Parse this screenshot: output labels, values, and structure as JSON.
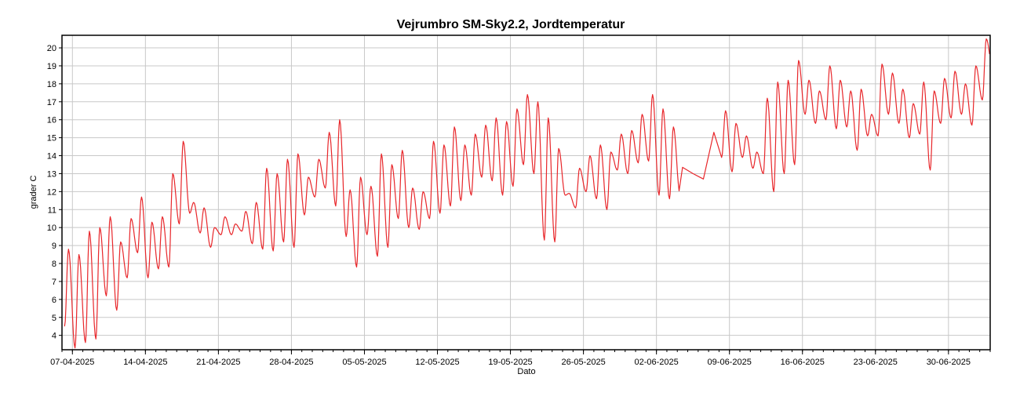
{
  "chart_data": {
    "type": "line",
    "title": "Vejrumbro SM-Sky2.2, Jordtemperatur",
    "xlabel": "Dato",
    "ylabel": "grader C",
    "ylim": [
      3.2,
      20.7
    ],
    "xlim": [
      "2025-04-06",
      "2025-07-04"
    ],
    "grid": true,
    "legend": "none",
    "yticks": [
      4,
      5,
      6,
      7,
      8,
      9,
      10,
      11,
      12,
      13,
      14,
      15,
      16,
      17,
      18,
      19,
      20
    ],
    "xticks": [
      "07-04-2025",
      "14-04-2025",
      "21-04-2025",
      "28-04-2025",
      "05-05-2025",
      "12-05-2025",
      "19-05-2025",
      "26-05-2025",
      "02-06-2025",
      "09-06-2025",
      "16-06-2025",
      "23-06-2025",
      "30-06-2025"
    ],
    "series": [
      {
        "color": "#e8262a",
        "daily_extremes": {
          "dates": [
            "2025-04-06",
            "2025-04-07",
            "2025-04-08",
            "2025-04-09",
            "2025-04-10",
            "2025-04-11",
            "2025-04-12",
            "2025-04-13",
            "2025-04-14",
            "2025-04-15",
            "2025-04-16",
            "2025-04-17",
            "2025-04-18",
            "2025-04-19",
            "2025-04-20",
            "2025-04-21",
            "2025-04-22",
            "2025-04-23",
            "2025-04-24",
            "2025-04-25",
            "2025-04-26",
            "2025-04-27",
            "2025-04-28",
            "2025-04-29",
            "2025-04-30",
            "2025-05-01",
            "2025-05-02",
            "2025-05-03",
            "2025-05-04",
            "2025-05-05",
            "2025-05-06",
            "2025-05-07",
            "2025-05-08",
            "2025-05-09",
            "2025-05-10",
            "2025-05-11",
            "2025-05-12",
            "2025-05-13",
            "2025-05-14",
            "2025-05-15",
            "2025-05-16",
            "2025-05-17",
            "2025-05-18",
            "2025-05-19",
            "2025-05-20",
            "2025-05-21",
            "2025-05-22",
            "2025-05-23",
            "2025-05-24",
            "2025-05-25",
            "2025-05-26",
            "2025-05-27",
            "2025-05-28",
            "2025-05-29",
            "2025-05-30",
            "2025-05-31",
            "2025-06-01",
            "2025-06-02",
            "2025-06-03",
            "2025-06-04",
            "2025-06-05",
            "2025-06-06",
            "2025-06-07",
            "2025-06-08",
            "2025-06-09",
            "2025-06-10",
            "2025-06-11",
            "2025-06-12",
            "2025-06-13",
            "2025-06-14",
            "2025-06-15",
            "2025-06-16",
            "2025-06-17",
            "2025-06-18",
            "2025-06-19",
            "2025-06-20",
            "2025-06-21",
            "2025-06-22",
            "2025-06-23",
            "2025-06-24",
            "2025-06-25",
            "2025-06-26",
            "2025-06-27",
            "2025-06-28",
            "2025-06-29",
            "2025-06-30",
            "2025-07-01",
            "2025-07-02",
            "2025-07-03"
          ],
          "min": [
            4.5,
            3.3,
            3.6,
            3.8,
            6.2,
            5.4,
            7.2,
            8.6,
            7.2,
            7.7,
            7.8,
            10.2,
            10.8,
            9.7,
            8.9,
            9.6,
            9.6,
            9.8,
            9.1,
            8.8,
            8.7,
            9.2,
            8.9,
            10.7,
            11.7,
            12.2,
            11.2,
            9.5,
            7.8,
            9.6,
            8.4,
            8.9,
            10.5,
            10.0,
            9.9,
            10.5,
            10.8,
            11.2,
            11.5,
            11.8,
            12.8,
            12.6,
            11.8,
            12.3,
            13.5,
            13.0,
            9.3,
            9.2,
            11.8,
            11.1,
            12.0,
            11.6,
            11.0,
            13.2,
            13.0,
            13.6,
            13.7,
            11.8,
            11.6,
            11.9,
            12.2,
            12.5,
            14.5,
            13.9,
            13.1,
            13.9,
            13.3,
            13.0,
            12.0,
            13.0,
            13.5,
            16.3,
            15.8,
            16.0,
            15.5,
            15.6,
            14.3,
            15.1,
            15.1,
            16.3,
            15.8,
            15.0,
            15.2,
            13.2,
            15.8,
            16.1,
            16.3,
            15.7,
            17.1
          ],
          "max": [
            8.8,
            8.5,
            9.8,
            10.0,
            10.6,
            9.2,
            10.5,
            11.7,
            10.3,
            10.6,
            13.0,
            14.8,
            11.4,
            11.1,
            10.0,
            10.6,
            10.2,
            10.9,
            11.4,
            13.3,
            13.0,
            13.8,
            14.1,
            12.8,
            13.8,
            15.3,
            16.0,
            12.1,
            12.8,
            12.3,
            14.1,
            13.5,
            14.3,
            12.2,
            12.0,
            14.8,
            14.6,
            15.6,
            14.6,
            15.2,
            15.7,
            16.1,
            15.9,
            16.6,
            17.4,
            17.0,
            16.1,
            14.4,
            11.9,
            13.3,
            14.0,
            14.6,
            14.2,
            15.2,
            15.4,
            16.3,
            17.4,
            16.6,
            15.6,
            14.8,
            13.8,
            12.9,
            16.1,
            16.5,
            15.8,
            15.1,
            14.2,
            17.2,
            18.1,
            18.2,
            19.3,
            18.2,
            17.6,
            19.0,
            18.2,
            17.6,
            17.7,
            16.3,
            19.1,
            18.6,
            17.7,
            16.9,
            18.1,
            17.6,
            18.3,
            18.7,
            18.0,
            19.0,
            20.5
          ]
        }
      }
    ]
  }
}
